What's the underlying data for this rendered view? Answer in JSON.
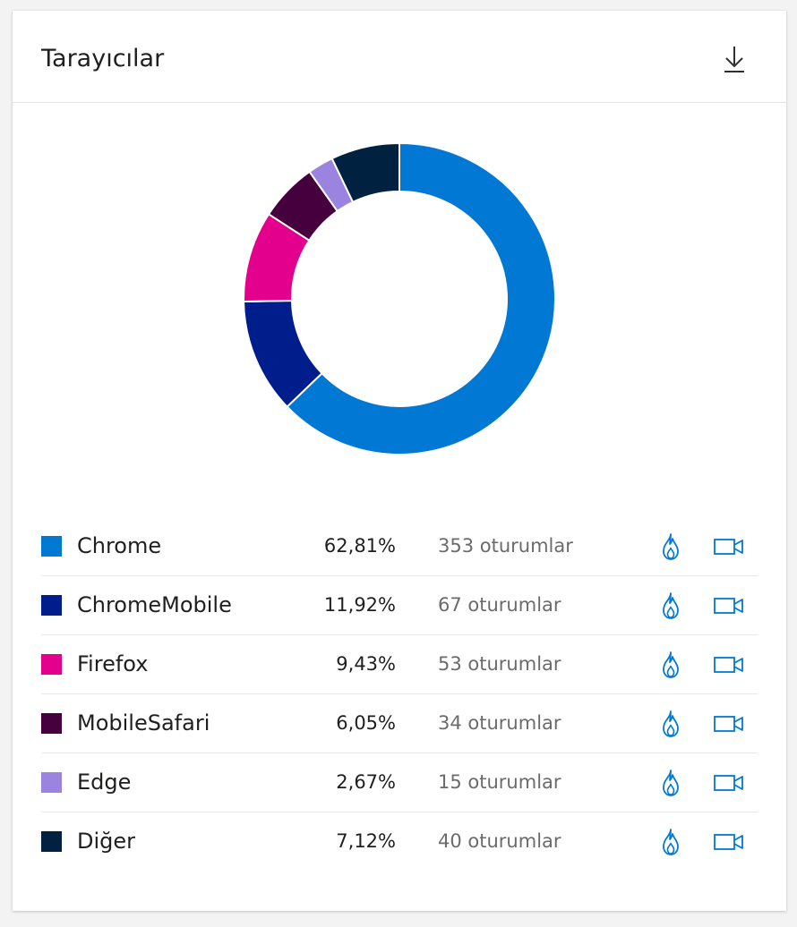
{
  "card": {
    "title": "Tarayıcılar",
    "download_icon": "download-icon"
  },
  "colors": {
    "slice_separator": "#ffffff",
    "action_icon": "#0078d4"
  },
  "chart_data": {
    "type": "pie",
    "donut": true,
    "categories": [
      "Chrome",
      "ChromeMobile",
      "Firefox",
      "MobileSafari",
      "Edge",
      "Diğer"
    ],
    "values": [
      62.81,
      11.92,
      9.43,
      6.05,
      2.67,
      7.12
    ],
    "colors": [
      "#0078d4",
      "#001d8c",
      "#e3008c",
      "#45003d",
      "#9a84e0",
      "#00213f"
    ]
  },
  "legend": [
    {
      "name": "Chrome",
      "percent": "62,81%",
      "sessions": "353 oturumlar",
      "color": "#0078d4",
      "heatmap_icon": "flame-icon",
      "recording_icon": "video-camera-icon"
    },
    {
      "name": "ChromeMobile",
      "percent": "11,92%",
      "sessions": "67 oturumlar",
      "color": "#001d8c",
      "heatmap_icon": "flame-icon",
      "recording_icon": "video-camera-icon"
    },
    {
      "name": "Firefox",
      "percent": "9,43%",
      "sessions": "53 oturumlar",
      "color": "#e3008c",
      "heatmap_icon": "flame-icon",
      "recording_icon": "video-camera-icon"
    },
    {
      "name": "MobileSafari",
      "percent": "6,05%",
      "sessions": "34 oturumlar",
      "color": "#45003d",
      "heatmap_icon": "flame-icon",
      "recording_icon": "video-camera-icon"
    },
    {
      "name": "Edge",
      "percent": "2,67%",
      "sessions": "15 oturumlar",
      "color": "#9a84e0",
      "heatmap_icon": "flame-icon",
      "recording_icon": "video-camera-icon"
    },
    {
      "name": "Diğer",
      "percent": "7,12%",
      "sessions": "40 oturumlar",
      "color": "#00213f",
      "heatmap_icon": "flame-icon",
      "recording_icon": "video-camera-icon"
    }
  ]
}
